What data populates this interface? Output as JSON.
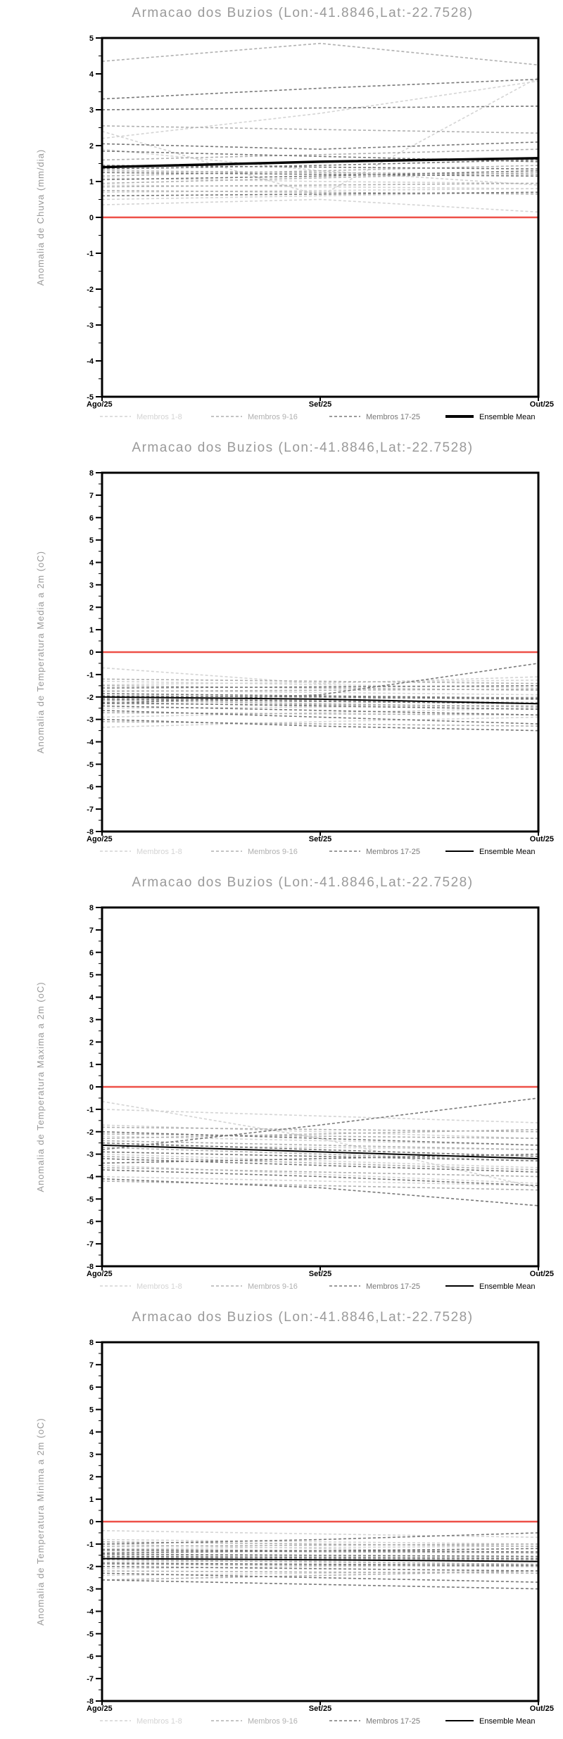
{
  "page_title": "Armacao dos Buzios ensemble forecast charts",
  "colors": {
    "member_light": "#d4d4d4",
    "member_medium": "#b0b0b0",
    "member_dark": "#787878",
    "ensemble_mean": "#000000",
    "zero_line": "#ee5048",
    "title_gray": "#9a9a9a",
    "axis": "#000000",
    "background": "#ffffff"
  },
  "legend": {
    "entries": [
      "Membros 1-8",
      "Membros 9-16",
      "Membros 17-25",
      "Ensemble Mean"
    ]
  },
  "chart_data": [
    {
      "type": "line",
      "title": "Armacao dos Buzios (Lon:-41.8846,Lat:-22.7528)",
      "ylabel": "Anomalia de Chuva (mm/dia)",
      "ylim": [
        -5,
        5
      ],
      "ytick_step": 1,
      "x_categories": [
        "Ago/25",
        "Set/25",
        "Out/25"
      ],
      "grid": false,
      "legend_position": "bottom",
      "zero_line": {
        "value": 0,
        "color_key": "zero_line"
      },
      "mean_thick": true,
      "series": [
        {
          "name": "Membros 1-8",
          "color_key": "member_light",
          "dash": true,
          "lines": [
            [
              2.4,
              0.6,
              3.9
            ],
            [
              2.2,
              2.9,
              3.8
            ],
            [
              1.9,
              1.3,
              0.9
            ],
            [
              1.1,
              1.0,
              0.95
            ],
            [
              0.9,
              0.85,
              0.8
            ],
            [
              0.7,
              0.75,
              0.8
            ],
            [
              0.5,
              0.6,
              0.7
            ],
            [
              0.35,
              0.5,
              0.15
            ]
          ]
        },
        {
          "name": "Membros 9-16",
          "color_key": "member_medium",
          "dash": true,
          "lines": [
            [
              4.35,
              4.85,
              4.25
            ],
            [
              2.55,
              2.45,
              2.35
            ],
            [
              1.6,
              1.75,
              1.9
            ],
            [
              1.3,
              1.25,
              1.2
            ],
            [
              1.15,
              1.3,
              1.45
            ],
            [
              0.95,
              1.1,
              1.25
            ],
            [
              0.85,
              0.9,
              0.95
            ],
            [
              0.75,
              0.7,
              0.65
            ]
          ]
        },
        {
          "name": "Membros 17-25",
          "color_key": "member_dark",
          "dash": true,
          "lines": [
            [
              3.3,
              3.6,
              3.85
            ],
            [
              3.0,
              3.05,
              3.1
            ],
            [
              2.05,
              1.9,
              2.1
            ],
            [
              1.85,
              1.7,
              1.55
            ],
            [
              1.45,
              1.4,
              1.35
            ],
            [
              1.35,
              1.45,
              1.6
            ],
            [
              1.25,
              1.2,
              1.15
            ],
            [
              1.05,
              1.15,
              1.3
            ],
            [
              0.6,
              0.65,
              0.7
            ]
          ]
        },
        {
          "name": "Ensemble Mean",
          "color_key": "ensemble_mean",
          "dash": false,
          "mean": true,
          "lines": [
            [
              1.4,
              1.55,
              1.65
            ]
          ]
        }
      ]
    },
    {
      "type": "line",
      "title": "Armacao dos Buzios (Lon:-41.8846,Lat:-22.7528)",
      "ylabel": "Anomalia de Temperatura Media a 2m (oC)",
      "ylim": [
        -8,
        8
      ],
      "ytick_step": 1,
      "x_categories": [
        "Ago/25",
        "Set/25",
        "Out/25"
      ],
      "grid": false,
      "legend_position": "bottom",
      "zero_line": {
        "value": 0,
        "color_key": "zero_line"
      },
      "mean_thick": false,
      "series": [
        {
          "name": "Membros 1-8",
          "color_key": "member_light",
          "dash": true,
          "lines": [
            [
              -0.7,
              -1.4,
              -1.1
            ],
            [
              -1.3,
              -1.45,
              -1.6
            ],
            [
              -1.7,
              -1.8,
              -1.9
            ],
            [
              -2.2,
              -2.1,
              -2.0
            ],
            [
              -2.5,
              -2.45,
              -2.4
            ],
            [
              -2.9,
              -2.7,
              -2.5
            ],
            [
              -3.35,
              -3.1,
              -2.9
            ],
            [
              -1.45,
              -1.35,
              -1.25
            ]
          ]
        },
        {
          "name": "Membros 9-16",
          "color_key": "member_medium",
          "dash": true,
          "lines": [
            [
              -1.2,
              -1.3,
              -1.4
            ],
            [
              -1.5,
              -1.6,
              -1.7
            ],
            [
              -1.75,
              -1.7,
              -1.65
            ],
            [
              -2.05,
              -2.15,
              -2.25
            ],
            [
              -2.3,
              -2.35,
              -2.4
            ],
            [
              -2.7,
              -2.75,
              -2.8
            ],
            [
              -3.1,
              -3.2,
              -3.3
            ],
            [
              -2.15,
              -2.3,
              -2.45
            ]
          ]
        },
        {
          "name": "Membros 17-25",
          "color_key": "member_dark",
          "dash": true,
          "lines": [
            [
              -1.6,
              -1.55,
              -1.5
            ],
            [
              -1.85,
              -1.95,
              -2.05
            ],
            [
              -1.95,
              -2.0,
              -2.1
            ],
            [
              -2.1,
              -2.2,
              -2.3
            ],
            [
              -2.25,
              -2.4,
              -2.55
            ],
            [
              -2.4,
              -2.6,
              -2.8
            ],
            [
              -2.6,
              -2.9,
              -3.2
            ],
            [
              -3.0,
              -3.3,
              -3.5
            ],
            [
              -2.3,
              -1.9,
              -0.5
            ]
          ]
        },
        {
          "name": "Ensemble Mean",
          "color_key": "ensemble_mean",
          "dash": false,
          "mean": true,
          "lines": [
            [
              -2.0,
              -2.1,
              -2.3
            ]
          ]
        }
      ]
    },
    {
      "type": "line",
      "title": "Armacao dos Buzios (Lon:-41.8846,Lat:-22.7528)",
      "ylabel": "Anomalia de Temperatura Maxima a 2m (oC)",
      "ylim": [
        -8,
        8
      ],
      "ytick_step": 1,
      "x_categories": [
        "Ago/25",
        "Set/25",
        "Out/25"
      ],
      "grid": false,
      "legend_position": "bottom",
      "zero_line": {
        "value": 0,
        "color_key": "zero_line"
      },
      "mean_thick": false,
      "series": [
        {
          "name": "Membros 1-8",
          "color_key": "member_light",
          "dash": true,
          "lines": [
            [
              -0.65,
              -2.3,
              -4.5
            ],
            [
              -1.0,
              -1.3,
              -1.6
            ],
            [
              -1.7,
              -2.0,
              -2.3
            ],
            [
              -2.2,
              -2.4,
              -2.6
            ],
            [
              -2.6,
              -2.7,
              -2.8
            ],
            [
              -3.0,
              -3.3,
              -3.6
            ],
            [
              -3.5,
              -3.9,
              -4.3
            ],
            [
              -4.0,
              -4.2,
              -4.4
            ]
          ]
        },
        {
          "name": "Membros 9-16",
          "color_key": "member_medium",
          "dash": true,
          "lines": [
            [
              -1.8,
              -1.9,
              -2.0
            ],
            [
              -2.1,
              -2.2,
              -2.3
            ],
            [
              -2.4,
              -2.6,
              -2.8
            ],
            [
              -2.7,
              -3.0,
              -3.3
            ],
            [
              -3.1,
              -3.4,
              -3.7
            ],
            [
              -3.6,
              -3.8,
              -4.0
            ],
            [
              -4.2,
              -4.4,
              -4.6
            ],
            [
              -2.3,
              -2.1,
              -1.9
            ]
          ]
        },
        {
          "name": "Membros 17-25",
          "color_key": "member_dark",
          "dash": true,
          "lines": [
            [
              -2.8,
              -1.7,
              -0.5
            ],
            [
              -2.0,
              -2.3,
              -2.6
            ],
            [
              -2.5,
              -2.8,
              -3.1
            ],
            [
              -2.9,
              -3.1,
              -3.3
            ],
            [
              -3.2,
              -3.5,
              -3.8
            ],
            [
              -3.7,
              -4.0,
              -4.4
            ],
            [
              -4.1,
              -4.5,
              -5.3
            ],
            [
              -3.4,
              -3.2,
              -3.0
            ],
            [
              -2.6,
              -2.9,
              -3.2
            ]
          ]
        },
        {
          "name": "Ensemble Mean",
          "color_key": "ensemble_mean",
          "dash": false,
          "mean": true,
          "lines": [
            [
              -2.6,
              -2.9,
              -3.2
            ]
          ]
        }
      ]
    },
    {
      "type": "line",
      "title": "Armacao dos Buzios (Lon:-41.8846,Lat:-22.7528)",
      "ylabel": "Anomalia de Temperatura Minima a 2m (oC)",
      "ylim": [
        -8,
        8
      ],
      "ytick_step": 1,
      "x_categories": [
        "Ago/25",
        "Set/25",
        "Out/25"
      ],
      "grid": false,
      "legend_position": "bottom",
      "zero_line": {
        "value": 0,
        "color_key": "zero_line"
      },
      "mean_thick": false,
      "series": [
        {
          "name": "Membros 1-8",
          "color_key": "member_light",
          "dash": true,
          "lines": [
            [
              -0.4,
              -0.55,
              -0.7
            ],
            [
              -0.8,
              -0.9,
              -1.0
            ],
            [
              -1.2,
              -1.15,
              -1.1
            ],
            [
              -1.5,
              -1.55,
              -1.6
            ],
            [
              -1.8,
              -1.75,
              -1.7
            ],
            [
              -2.1,
              -2.0,
              -1.9
            ],
            [
              -2.4,
              -2.3,
              -2.2
            ],
            [
              -1.0,
              -1.2,
              -1.4
            ]
          ]
        },
        {
          "name": "Membros 9-16",
          "color_key": "member_medium",
          "dash": true,
          "lines": [
            [
              -0.9,
              -1.0,
              -1.1
            ],
            [
              -1.3,
              -1.35,
              -1.4
            ],
            [
              -1.6,
              -1.65,
              -1.7
            ],
            [
              -1.9,
              -1.95,
              -2.0
            ],
            [
              -2.2,
              -2.25,
              -2.3
            ],
            [
              -2.6,
              -2.4,
              -2.2
            ],
            [
              -1.1,
              -1.05,
              -1.0
            ],
            [
              -1.7,
              -1.8,
              -1.9
            ]
          ]
        },
        {
          "name": "Membros 17-25",
          "color_key": "member_dark",
          "dash": true,
          "lines": [
            [
              -1.0,
              -0.8,
              -0.5
            ],
            [
              -1.4,
              -1.3,
              -1.2
            ],
            [
              -1.55,
              -1.6,
              -1.65
            ],
            [
              -1.85,
              -1.9,
              -1.95
            ],
            [
              -2.0,
              -2.1,
              -2.2
            ],
            [
              -2.3,
              -2.5,
              -2.7
            ],
            [
              -2.6,
              -2.8,
              -3.0
            ],
            [
              -1.25,
              -1.3,
              -1.35
            ],
            [
              -1.45,
              -1.5,
              -1.55
            ]
          ]
        },
        {
          "name": "Ensemble Mean",
          "color_key": "ensemble_mean",
          "dash": false,
          "mean": true,
          "lines": [
            [
              -1.65,
              -1.7,
              -1.78
            ]
          ]
        }
      ]
    }
  ]
}
